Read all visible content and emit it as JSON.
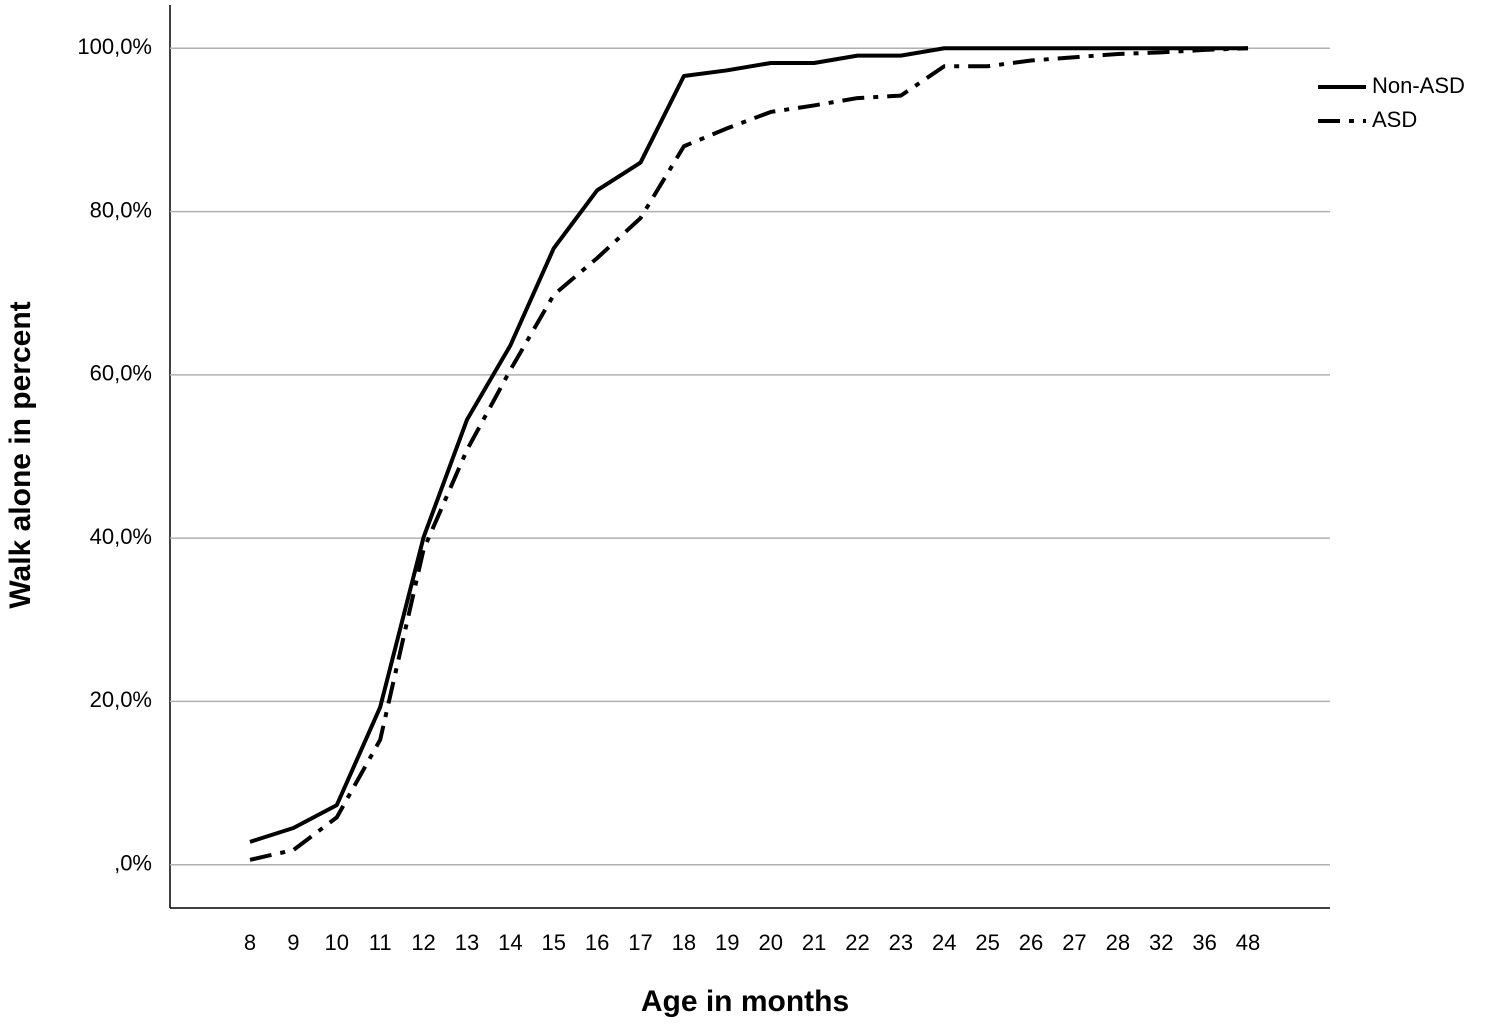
{
  "chart_data": {
    "type": "line",
    "x_label": "Age in months",
    "y_label": "Walk alone in percent",
    "categories": [
      "8",
      "9",
      "10",
      "11",
      "12",
      "13",
      "14",
      "15",
      "16",
      "17",
      "18",
      "19",
      "20",
      "21",
      "22",
      "23",
      "24",
      "25",
      "26",
      "27",
      "28",
      "32",
      "36",
      "48"
    ],
    "series": [
      {
        "name": "Non-ASD",
        "color": "#000000",
        "dash": "solid",
        "values": [
          2.8,
          4.5,
          7.3,
          19.3,
          40.1,
          54.5,
          63.6,
          75.5,
          82.6,
          86.0,
          96.6,
          97.3,
          98.2,
          98.2,
          99.1,
          99.1,
          100,
          100,
          100,
          100,
          100,
          100,
          100,
          100
        ]
      },
      {
        "name": "ASD",
        "color": "#000000",
        "dash": "dashdot",
        "values": [
          0.6,
          1.8,
          5.8,
          15.3,
          38.6,
          50.8,
          60.6,
          69.8,
          74.3,
          79.2,
          88.0,
          90.2,
          92.2,
          93.0,
          93.9,
          94.2,
          97.8,
          97.8,
          98.5,
          98.9,
          99.3,
          99.5,
          99.8,
          100
        ]
      }
    ],
    "ylim": [
      -5.3,
      105.3
    ],
    "yticks": [
      {
        "value": 0,
        "label": ",0%"
      },
      {
        "value": 20,
        "label": "20,0%"
      },
      {
        "value": 40,
        "label": "40,0%"
      },
      {
        "value": 60,
        "label": "60,0%"
      },
      {
        "value": 80,
        "label": "80,0%"
      },
      {
        "value": 100,
        "label": "100,0%"
      }
    ],
    "grid": true,
    "legend": "top-right"
  }
}
